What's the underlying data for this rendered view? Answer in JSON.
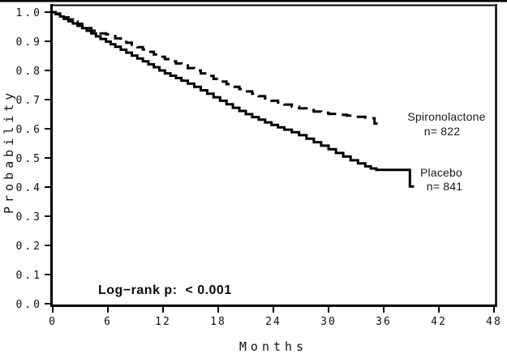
{
  "chart_data": {
    "type": "line",
    "subtype": "kaplan-meier-step",
    "title": "",
    "xlabel": "Months",
    "ylabel": "Probability",
    "xlim": [
      0,
      48
    ],
    "ylim": [
      0.0,
      1.0
    ],
    "xticks": [
      0,
      6,
      12,
      18,
      24,
      30,
      36,
      42,
      48
    ],
    "ytick_labels": [
      "1.0",
      "0.9",
      "0.8",
      "0.7",
      "0.6",
      "0.5",
      "0.4",
      "0.3",
      "0.2",
      "0.1",
      "0.0"
    ],
    "grid": false,
    "frame": "full-box",
    "line_color": "#000000",
    "annotations": {
      "logrank": "Log−rank p:  < 0.001"
    },
    "series": [
      {
        "name": "Spironolactone",
        "n_label": "n= 822",
        "line_style": "dashed",
        "color": "#000000",
        "points": [
          [
            0,
            1.0
          ],
          [
            0.3,
            0.995
          ],
          [
            0.8,
            0.988
          ],
          [
            1.2,
            0.982
          ],
          [
            1.7,
            0.975
          ],
          [
            2.2,
            0.968
          ],
          [
            2.7,
            0.96
          ],
          [
            3.2,
            0.953
          ],
          [
            3.7,
            0.945
          ],
          [
            4.2,
            0.936
          ],
          [
            4.7,
            0.931
          ],
          [
            5.2,
            0.927
          ],
          [
            5.8,
            0.924
          ],
          [
            6.3,
            0.918
          ],
          [
            6.8,
            0.91
          ],
          [
            7.4,
            0.903
          ],
          [
            8,
            0.895
          ],
          [
            8.6,
            0.888
          ],
          [
            9.2,
            0.88
          ],
          [
            9.8,
            0.872
          ],
          [
            10.4,
            0.864
          ],
          [
            11,
            0.855
          ],
          [
            11.6,
            0.847
          ],
          [
            12.2,
            0.839
          ],
          [
            12.8,
            0.831
          ],
          [
            13.4,
            0.824
          ],
          [
            14,
            0.817
          ],
          [
            14.7,
            0.808
          ],
          [
            15.4,
            0.8
          ],
          [
            16.1,
            0.79
          ],
          [
            16.8,
            0.781
          ],
          [
            17.5,
            0.771
          ],
          [
            18.2,
            0.762
          ],
          [
            18.9,
            0.753
          ],
          [
            19.6,
            0.744
          ],
          [
            20.3,
            0.736
          ],
          [
            21,
            0.728
          ],
          [
            21.7,
            0.72
          ],
          [
            22.4,
            0.712
          ],
          [
            23.1,
            0.704
          ],
          [
            23.8,
            0.696
          ],
          [
            24.5,
            0.69
          ],
          [
            25.2,
            0.683
          ],
          [
            26,
            0.676
          ],
          [
            26.8,
            0.67
          ],
          [
            27.6,
            0.664
          ],
          [
            28.4,
            0.659
          ],
          [
            29.2,
            0.655
          ],
          [
            30,
            0.651
          ],
          [
            31,
            0.648
          ],
          [
            32,
            0.645
          ],
          [
            33,
            0.641
          ],
          [
            34,
            0.638
          ],
          [
            34.7,
            0.636
          ],
          [
            35,
            0.618
          ],
          [
            35.4,
            0.616
          ]
        ]
      },
      {
        "name": "Placebo",
        "n_label": "n= 841",
        "line_style": "solid",
        "color": "#000000",
        "points": [
          [
            0,
            1.0
          ],
          [
            0.3,
            0.993
          ],
          [
            0.8,
            0.985
          ],
          [
            1.2,
            0.977
          ],
          [
            1.7,
            0.969
          ],
          [
            2.2,
            0.961
          ],
          [
            2.7,
            0.953
          ],
          [
            3.2,
            0.945
          ],
          [
            3.7,
            0.936
          ],
          [
            4.2,
            0.927
          ],
          [
            4.7,
            0.917
          ],
          [
            5.2,
            0.908
          ],
          [
            5.8,
            0.899
          ],
          [
            6.3,
            0.89
          ],
          [
            6.8,
            0.881
          ],
          [
            7.4,
            0.871
          ],
          [
            8,
            0.861
          ],
          [
            8.6,
            0.851
          ],
          [
            9.2,
            0.841
          ],
          [
            9.8,
            0.831
          ],
          [
            10.4,
            0.821
          ],
          [
            11,
            0.811
          ],
          [
            11.6,
            0.8
          ],
          [
            12.2,
            0.79
          ],
          [
            12.8,
            0.782
          ],
          [
            13.4,
            0.774
          ],
          [
            14,
            0.765
          ],
          [
            14.7,
            0.755
          ],
          [
            15.4,
            0.744
          ],
          [
            16.1,
            0.732
          ],
          [
            16.8,
            0.72
          ],
          [
            17.5,
            0.708
          ],
          [
            18.2,
            0.696
          ],
          [
            18.9,
            0.684
          ],
          [
            19.6,
            0.672
          ],
          [
            20.3,
            0.661
          ],
          [
            21,
            0.65
          ],
          [
            21.7,
            0.64
          ],
          [
            22.4,
            0.631
          ],
          [
            23.1,
            0.622
          ],
          [
            23.8,
            0.613
          ],
          [
            24.5,
            0.605
          ],
          [
            25.2,
            0.597
          ],
          [
            26,
            0.588
          ],
          [
            26.8,
            0.578
          ],
          [
            27.6,
            0.566
          ],
          [
            28.4,
            0.554
          ],
          [
            29.2,
            0.542
          ],
          [
            30,
            0.53
          ],
          [
            30.8,
            0.517
          ],
          [
            31.6,
            0.505
          ],
          [
            32.4,
            0.492
          ],
          [
            33.2,
            0.481
          ],
          [
            34,
            0.471
          ],
          [
            34.6,
            0.464
          ],
          [
            35.2,
            0.459
          ],
          [
            38.7,
            0.459
          ],
          [
            38.85,
            0.402
          ],
          [
            39.3,
            0.402
          ]
        ]
      }
    ]
  }
}
